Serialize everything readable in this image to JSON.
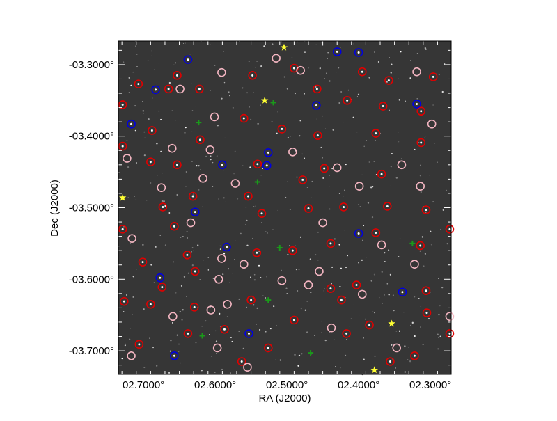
{
  "chart_data": {
    "type": "scatter",
    "xlabel": "RA (J2000)",
    "ylabel": "Dec (J2000)",
    "xlim": [
      2.735,
      2.271
    ],
    "ylim": [
      -3.733,
      -3.267
    ],
    "x_ticks": [
      2.7,
      2.6,
      2.5,
      2.4,
      2.3
    ],
    "x_tick_labels": [
      "02.7000°",
      "02.6000°",
      "02.5000°",
      "02.4000°",
      "02.3000°"
    ],
    "y_ticks": [
      -3.3,
      -3.4,
      -3.5,
      -3.6,
      -3.7
    ],
    "y_tick_labels": [
      "-03.3000°",
      "-03.4000°",
      "-03.5000°",
      "-03.6000°",
      "-03.7000°"
    ],
    "grid": false,
    "background": "grayscale sky image",
    "series": [
      {
        "marker": "circle",
        "color": "#e00000",
        "points": [
          [
            2.653,
            -3.315
          ],
          [
            2.622,
            -3.334
          ],
          [
            2.707,
            -3.327
          ],
          [
            2.548,
            -3.315
          ],
          [
            2.49,
            -3.305
          ],
          [
            2.458,
            -3.334
          ],
          [
            2.395,
            -3.31
          ],
          [
            2.358,
            -3.322
          ],
          [
            2.296,
            -3.317
          ],
          [
            2.729,
            -3.356
          ],
          [
            2.665,
            -3.334
          ],
          [
            2.416,
            -3.35
          ],
          [
            2.366,
            -3.358
          ],
          [
            2.313,
            -3.365
          ],
          [
            2.729,
            -3.414
          ],
          [
            2.688,
            -3.392
          ],
          [
            2.621,
            -3.405
          ],
          [
            2.56,
            -3.375
          ],
          [
            2.507,
            -3.39
          ],
          [
            2.457,
            -3.399
          ],
          [
            2.376,
            -3.396
          ],
          [
            2.313,
            -3.409
          ],
          [
            2.69,
            -3.436
          ],
          [
            2.653,
            -3.44
          ],
          [
            2.541,
            -3.439
          ],
          [
            2.478,
            -3.461
          ],
          [
            2.448,
            -3.445
          ],
          [
            2.368,
            -3.453
          ],
          [
            2.673,
            -3.499
          ],
          [
            2.631,
            -3.484
          ],
          [
            2.554,
            -3.484
          ],
          [
            2.47,
            -3.501
          ],
          [
            2.421,
            -3.499
          ],
          [
            2.36,
            -3.498
          ],
          [
            2.306,
            -3.503
          ],
          [
            2.729,
            -3.53
          ],
          [
            2.657,
            -3.526
          ],
          [
            2.535,
            -3.508
          ],
          [
            2.439,
            -3.55
          ],
          [
            2.376,
            -3.535
          ],
          [
            2.273,
            -3.53
          ],
          [
            2.639,
            -3.566
          ],
          [
            2.542,
            -3.563
          ],
          [
            2.492,
            -3.56
          ],
          [
            2.314,
            -3.553
          ],
          [
            2.701,
            -3.576
          ],
          [
            2.674,
            -3.611
          ],
          [
            2.628,
            -3.589
          ],
          [
            2.55,
            -3.629
          ],
          [
            2.439,
            -3.613
          ],
          [
            2.403,
            -3.608
          ],
          [
            2.306,
            -3.616
          ],
          [
            2.727,
            -3.631
          ],
          [
            2.69,
            -3.635
          ],
          [
            2.629,
            -3.639
          ],
          [
            2.587,
            -3.67
          ],
          [
            2.49,
            -3.657
          ],
          [
            2.424,
            -3.629
          ],
          [
            2.385,
            -3.664
          ],
          [
            2.305,
            -3.647
          ],
          [
            2.706,
            -3.691
          ],
          [
            2.638,
            -3.676
          ],
          [
            2.563,
            -3.715
          ],
          [
            2.526,
            -3.696
          ],
          [
            2.417,
            -3.676
          ],
          [
            2.356,
            -3.715
          ],
          [
            2.322,
            -3.707
          ],
          [
            2.273,
            -3.676
          ]
        ]
      },
      {
        "marker": "circle",
        "color": "#f4b6c2",
        "points": [
          [
            2.591,
            -3.311
          ],
          [
            2.481,
            -3.308
          ],
          [
            2.515,
            -3.291
          ],
          [
            2.319,
            -3.31
          ],
          [
            2.649,
            -3.334
          ],
          [
            2.601,
            -3.373
          ],
          [
            2.492,
            -3.422
          ],
          [
            2.66,
            -3.417
          ],
          [
            2.607,
            -3.419
          ],
          [
            2.723,
            -3.431
          ],
          [
            2.675,
            -3.472
          ],
          [
            2.617,
            -3.459
          ],
          [
            2.572,
            -3.466
          ],
          [
            2.43,
            -3.444
          ],
          [
            2.399,
            -3.47
          ],
          [
            2.34,
            -3.44
          ],
          [
            2.314,
            -3.47
          ],
          [
            2.298,
            -3.383
          ],
          [
            2.634,
            -3.521
          ],
          [
            2.591,
            -3.571
          ],
          [
            2.56,
            -3.579
          ],
          [
            2.45,
            -3.521
          ],
          [
            2.455,
            -3.589
          ],
          [
            2.368,
            -3.552
          ],
          [
            2.716,
            -3.543
          ],
          [
            2.595,
            -3.6
          ],
          [
            2.507,
            -3.602
          ],
          [
            2.47,
            -3.608
          ],
          [
            2.395,
            -3.621
          ],
          [
            2.322,
            -3.579
          ],
          [
            2.583,
            -3.635
          ],
          [
            2.659,
            -3.652
          ],
          [
            2.606,
            -3.643
          ],
          [
            2.438,
            -3.668
          ],
          [
            2.347,
            -3.696
          ],
          [
            2.717,
            -3.707
          ],
          [
            2.597,
            -3.696
          ],
          [
            2.555,
            -3.723
          ],
          [
            2.273,
            -3.652
          ]
        ]
      },
      {
        "marker": "circle",
        "color": "#0000e0",
        "points": [
          [
            2.638,
            -3.293
          ],
          [
            2.683,
            -3.335
          ],
          [
            2.459,
            -3.357
          ],
          [
            2.319,
            -3.355
          ],
          [
            2.717,
            -3.383
          ],
          [
            2.526,
            -3.423
          ],
          [
            2.59,
            -3.44
          ],
          [
            2.528,
            -3.441
          ],
          [
            2.628,
            -3.506
          ],
          [
            2.4,
            -3.536
          ],
          [
            2.584,
            -3.555
          ],
          [
            2.677,
            -3.598
          ],
          [
            2.339,
            -3.618
          ],
          [
            2.553,
            -3.676
          ],
          [
            2.657,
            -3.707
          ],
          [
            2.43,
            -3.282
          ],
          [
            2.4,
            -3.283
          ]
        ]
      },
      {
        "marker": "plus",
        "color": "#1a9a1a",
        "points": [
          [
            2.519,
            -3.353
          ],
          [
            2.623,
            -3.381
          ],
          [
            2.541,
            -3.464
          ],
          [
            2.51,
            -3.556
          ],
          [
            2.325,
            -3.55
          ],
          [
            2.526,
            -3.629
          ],
          [
            2.618,
            -3.679
          ],
          [
            2.467,
            -3.703
          ]
        ]
      },
      {
        "marker": "star",
        "color": "#ffff33",
        "points": [
          [
            2.504,
            -3.276
          ],
          [
            2.531,
            -3.35
          ],
          [
            2.729,
            -3.486
          ],
          [
            2.354,
            -3.662
          ],
          [
            2.378,
            -3.727
          ]
        ]
      }
    ]
  }
}
